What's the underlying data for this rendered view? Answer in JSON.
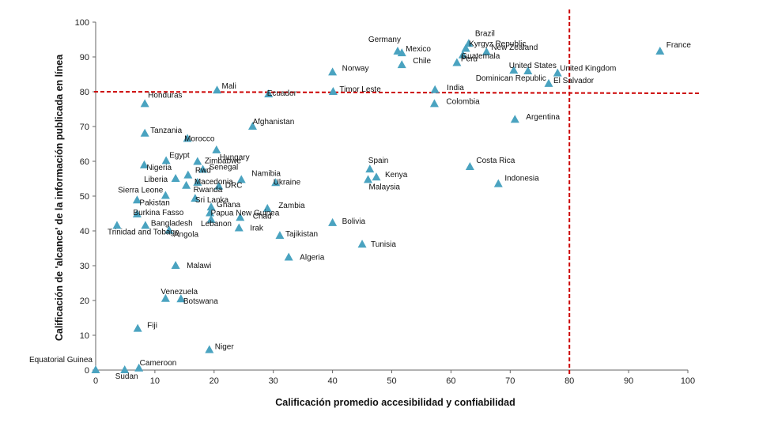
{
  "chart_data": {
    "type": "scatter",
    "title": "",
    "xlabel": "Calificación promedio accesibilidad y confiabilidad",
    "ylabel": "Calificación de 'alcance' de la información publicada en línea",
    "xlim": [
      0,
      100
    ],
    "ylim": [
      0,
      100
    ],
    "xticks": [
      "0",
      "10",
      "20",
      "30",
      "40",
      "50",
      "60",
      "70",
      "80",
      "90",
      "100"
    ],
    "yticks": [
      "0",
      "10",
      "20",
      "30",
      "40",
      "50",
      "60",
      "70",
      "80",
      "90",
      "100"
    ],
    "grid": false,
    "marker_color": "#4aa3c0",
    "reference_lines": {
      "x": 80,
      "y": 80,
      "color": "#cc0000",
      "style": "dashed"
    },
    "points": [
      {
        "label": "France",
        "x": 95.3,
        "y": 91.6
      },
      {
        "label": "Brazil",
        "x": 63,
        "y": 93.8
      },
      {
        "label": "Kyrgyz Republic",
        "x": 62.5,
        "y": 92.4
      },
      {
        "label": "New Zealand",
        "x": 66,
        "y": 91.4
      },
      {
        "label": "Guatemala",
        "x": 62,
        "y": 90.5
      },
      {
        "label": "Germany",
        "x": 51,
        "y": 91.6
      },
      {
        "label": "Mexico",
        "x": 51.7,
        "y": 91.1
      },
      {
        "label": "Peru",
        "x": 61,
        "y": 88.3
      },
      {
        "label": "Chile",
        "x": 51.7,
        "y": 87.7
      },
      {
        "label": "Norway",
        "x": 40,
        "y": 85.6
      },
      {
        "label": "United States",
        "x": 70.6,
        "y": 86.1
      },
      {
        "label": "Dominican Republic",
        "x": 73,
        "y": 85.9
      },
      {
        "label": "United Kingdom",
        "x": 78,
        "y": 85.3
      },
      {
        "label": "El Salvador",
        "x": 76.5,
        "y": 82.3
      },
      {
        "label": "India",
        "x": 57.3,
        "y": 80.5
      },
      {
        "label": "Mali",
        "x": 20.5,
        "y": 80.4
      },
      {
        "label": "Ecuador",
        "x": 29.2,
        "y": 79.3
      },
      {
        "label": "Timor Leste",
        "x": 40.1,
        "y": 80
      },
      {
        "label": "Honduras",
        "x": 8.3,
        "y": 76.5
      },
      {
        "label": "Colombia",
        "x": 57.2,
        "y": 76.5
      },
      {
        "label": "Argentina",
        "x": 70.8,
        "y": 72
      },
      {
        "label": "Afghanistan",
        "x": 26.5,
        "y": 70
      },
      {
        "label": "Tanzania",
        "x": 8.3,
        "y": 68
      },
      {
        "label": "Morocco",
        "x": 15.5,
        "y": 66.5
      },
      {
        "label": "Hungary",
        "x": 20.4,
        "y": 63.2
      },
      {
        "label": "Egypt",
        "x": 11.9,
        "y": 60.1
      },
      {
        "label": "Zimbabwe",
        "x": 17.2,
        "y": 59.9
      },
      {
        "label": "Senegal",
        "x": 18.1,
        "y": 57.6
      },
      {
        "label": "Nigeria",
        "x": 8.2,
        "y": 58.9
      },
      {
        "label": "Rwd",
        "x": 15.6,
        "y": 56
      },
      {
        "label": "Macedonia",
        "x": 17.2,
        "y": 53.9
      },
      {
        "label": "Namibia",
        "x": 24.6,
        "y": 54.7
      },
      {
        "label": "Ukraine",
        "x": 30.4,
        "y": 53.8
      },
      {
        "label": "Liberia",
        "x": 13.5,
        "y": 55
      },
      {
        "label": "Rwanda",
        "x": 15.3,
        "y": 53
      },
      {
        "label": "DRC",
        "x": 20.8,
        "y": 52.8
      },
      {
        "label": "Sierra Leone",
        "x": 11.8,
        "y": 50.1
      },
      {
        "label": "Sri Lanka",
        "x": 16.8,
        "y": 49.3
      },
      {
        "label": "Pakistan",
        "x": 7,
        "y": 48.8
      },
      {
        "label": "Ghana",
        "x": 19.5,
        "y": 46.8
      },
      {
        "label": "Papua New Guinea",
        "x": 19.3,
        "y": 45.1
      },
      {
        "label": "Zambia",
        "x": 29,
        "y": 46.4
      },
      {
        "label": "Chad",
        "x": 24.4,
        "y": 43.8
      },
      {
        "label": "Burkina Fasso",
        "x": 7,
        "y": 44.8
      },
      {
        "label": "Lebanon",
        "x": 19.5,
        "y": 43.2
      },
      {
        "label": "Trinidad and Tobago",
        "x": 3.6,
        "y": 41.5
      },
      {
        "label": "Bangladesh",
        "x": 8.4,
        "y": 41.5
      },
      {
        "label": "Angola",
        "x": 12.4,
        "y": 40.1
      },
      {
        "label": "Irak",
        "x": 24.2,
        "y": 40.8
      },
      {
        "label": "Tajikistan",
        "x": 31.1,
        "y": 38.6
      },
      {
        "label": "Spain",
        "x": 46.3,
        "y": 57.7
      },
      {
        "label": "Kenya",
        "x": 47.4,
        "y": 55.4
      },
      {
        "label": "Malaysia",
        "x": 46,
        "y": 54.7
      },
      {
        "label": "Costa Rica",
        "x": 63.2,
        "y": 58.4
      },
      {
        "label": "Indonesia",
        "x": 68,
        "y": 53.5
      },
      {
        "label": "Bolivia",
        "x": 40,
        "y": 42.3
      },
      {
        "label": "Tunisia",
        "x": 45,
        "y": 36.1
      },
      {
        "label": "Algeria",
        "x": 32.6,
        "y": 32.4
      },
      {
        "label": "Malawi",
        "x": 13.5,
        "y": 30
      },
      {
        "label": "Venezuela",
        "x": 11.8,
        "y": 20.5
      },
      {
        "label": "Botswana",
        "x": 14.4,
        "y": 20.4
      },
      {
        "label": "Fiji",
        "x": 7.1,
        "y": 11.9
      },
      {
        "label": "Niger",
        "x": 19.2,
        "y": 5.8
      },
      {
        "label": "Cameroon",
        "x": 7.3,
        "y": 0.5
      },
      {
        "label": "Equatorial Guinea",
        "x": 0,
        "y": 0
      },
      {
        "label": "Sudan",
        "x": 4.9,
        "y": 0
      }
    ]
  }
}
